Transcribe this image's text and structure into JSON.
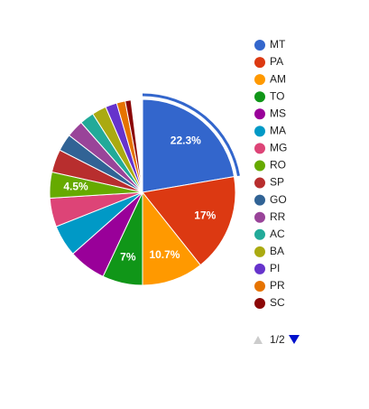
{
  "chart_data": {
    "type": "pie",
    "categories": [
      "MT",
      "PA",
      "AM",
      "TO",
      "MS",
      "MA",
      "MG",
      "RO",
      "SP",
      "GO",
      "RR",
      "AC",
      "BA",
      "PI",
      "PR",
      "SC"
    ],
    "values": [
      22.3,
      17,
      10.7,
      7,
      6.5,
      5.5,
      5,
      4.5,
      4,
      3,
      3,
      2.5,
      2.5,
      2,
      1.5,
      1
    ],
    "value_labels": [
      "22.3%",
      "17%",
      "10.7%",
      "7%",
      null,
      null,
      null,
      "4.5%",
      null,
      null,
      null,
      null,
      null,
      null,
      null,
      null
    ],
    "colors": [
      "#3366cc",
      "#dc3912",
      "#ff9900",
      "#109618",
      "#990099",
      "#0099c6",
      "#dd4477",
      "#66aa00",
      "#b82e2e",
      "#316395",
      "#994499",
      "#22aa99",
      "#aaaa11",
      "#6633cc",
      "#e67300",
      "#8b0707"
    ],
    "legend_page": "1/2"
  }
}
